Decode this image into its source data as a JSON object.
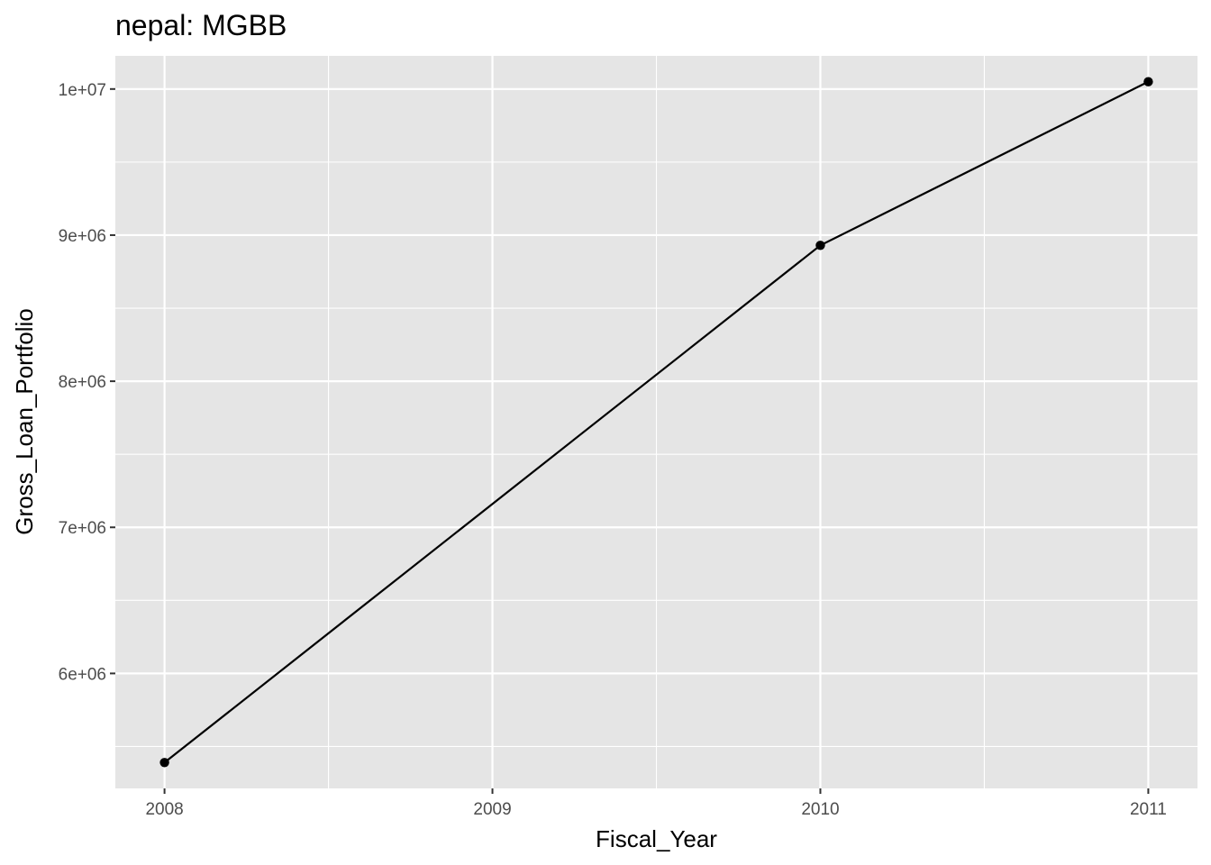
{
  "chart_data": {
    "type": "line",
    "title": "nepal:  MGBB",
    "xlabel": "Fiscal_Year",
    "ylabel": "Gross_Loan_Portfolio",
    "x": [
      2008,
      2010,
      2011
    ],
    "series": [
      {
        "values": [
          5390000,
          8930000,
          10050000
        ]
      }
    ],
    "xticks": [
      2008,
      2009,
      2010,
      2011
    ],
    "xtick_labels": [
      "2008",
      "2009",
      "2010",
      "2011"
    ],
    "yticks": [
      6000000,
      7000000,
      8000000,
      9000000,
      10000000
    ],
    "ytick_labels": [
      "6e+06",
      "7e+06",
      "8e+06",
      "9e+06",
      "1e+07"
    ],
    "xlim": [
      2007.85,
      2011.15
    ],
    "ylim": [
      5213000,
      10227000
    ],
    "grid": true,
    "panel_color": "#e5e5e5",
    "grid_color": "#ffffff",
    "line_color": "#000000",
    "point_color": "#000000"
  }
}
